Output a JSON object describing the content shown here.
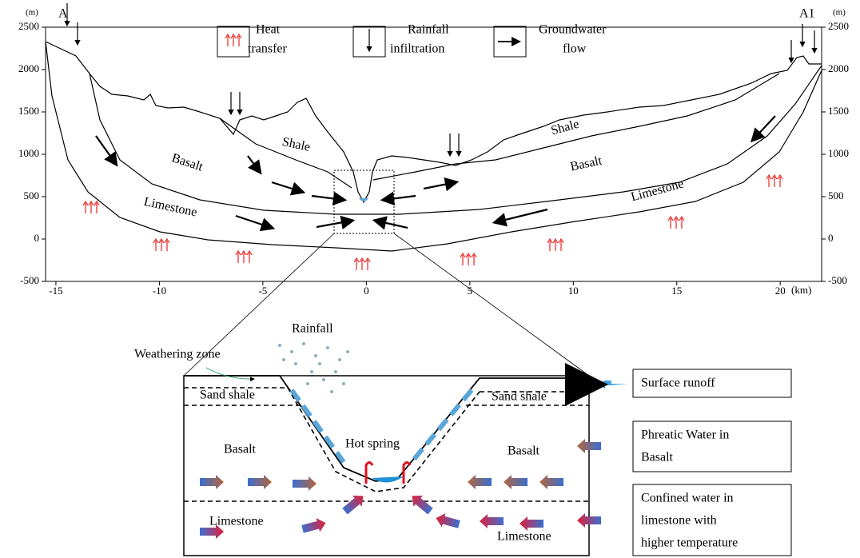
{
  "section": {
    "left_label": "A",
    "right_label": "A1",
    "y_unit": "(m)",
    "x_unit": "(km)",
    "xticks": [
      -15,
      -10,
      -5,
      0,
      5,
      10,
      15,
      20
    ],
    "xlim": [
      -15.5,
      22
    ],
    "yticks": [
      -500,
      0,
      500,
      1000,
      1500,
      2000,
      2500
    ],
    "ylim": [
      -500,
      2500
    ],
    "layers": {
      "shale_left": "Shale",
      "shale_right": "Shale",
      "basalt_left": "Basalt",
      "basalt_right": "Basalt",
      "limestone_left": "Limestone",
      "limestone_right": "Limestone"
    }
  },
  "legend": [
    {
      "lines": [
        "Heat",
        "transfer"
      ]
    },
    {
      "lines": [
        "Rainfall",
        "infiltration"
      ]
    },
    {
      "lines": [
        "Groundwater",
        "flow"
      ]
    }
  ],
  "zoom": {
    "rainfall": "Rainfall",
    "weathering": "Weathering zone",
    "sand_shale_left": "Sand shale",
    "sand_shale_right": "Sand shale",
    "basalt_left": "Basalt",
    "basalt_right": "Basalt",
    "hot_spring": "Hot spring",
    "limestone_left": "Limestone",
    "limestone_right": "Limestone"
  },
  "key": [
    {
      "lines": [
        "Surface runoff"
      ]
    },
    {
      "lines": [
        "Phreatic Water in",
        "Basalt"
      ]
    },
    {
      "lines": [
        "Confined water in",
        "limestone with",
        "higher temperature"
      ]
    }
  ]
}
